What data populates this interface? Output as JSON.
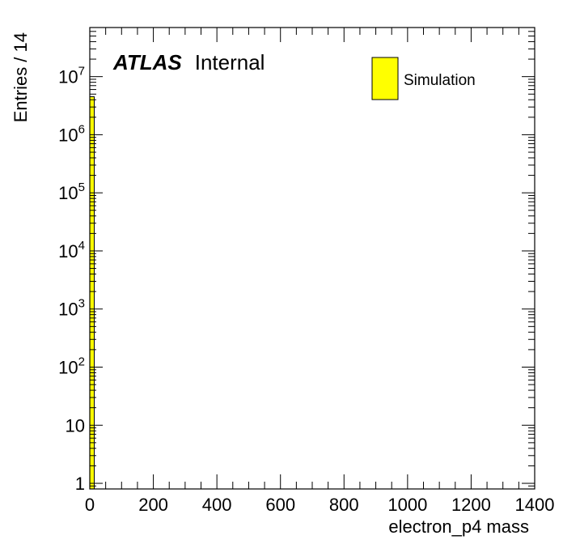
{
  "chart_data": {
    "type": "bar",
    "subtype": "histogram",
    "xlabel": "electron_p4 mass",
    "ylabel": "Entries / 14",
    "xlim": [
      0,
      1400
    ],
    "ylim": [
      0.8,
      70000000
    ],
    "y_scale": "log",
    "x_tick_labels": [
      "0",
      "200",
      "400",
      "600",
      "800",
      "1000",
      "1200",
      "1400"
    ],
    "x_ticks": [
      0,
      200,
      400,
      600,
      800,
      1000,
      1200,
      1400
    ],
    "y_ticks": [
      {
        "value": 1,
        "mantissa": "1",
        "exponent": ""
      },
      {
        "value": 10,
        "mantissa": "10",
        "exponent": ""
      },
      {
        "value": 100,
        "mantissa": "10",
        "exponent": "2"
      },
      {
        "value": 1000,
        "mantissa": "10",
        "exponent": "3"
      },
      {
        "value": 10000,
        "mantissa": "10",
        "exponent": "4"
      },
      {
        "value": 100000,
        "mantissa": "10",
        "exponent": "5"
      },
      {
        "value": 1000000,
        "mantissa": "10",
        "exponent": "6"
      },
      {
        "value": 10000000,
        "mantissa": "10",
        "exponent": "7"
      }
    ],
    "bins": [
      {
        "low": 0,
        "high": 14,
        "value": 4500000
      }
    ],
    "fill_color": "#ffff00",
    "edge_color": "#000000",
    "atlas_label": {
      "bold": "ATLAS",
      "text": "Internal"
    },
    "legend": {
      "entries": [
        "Simulation"
      ],
      "placement": "top-right"
    }
  }
}
